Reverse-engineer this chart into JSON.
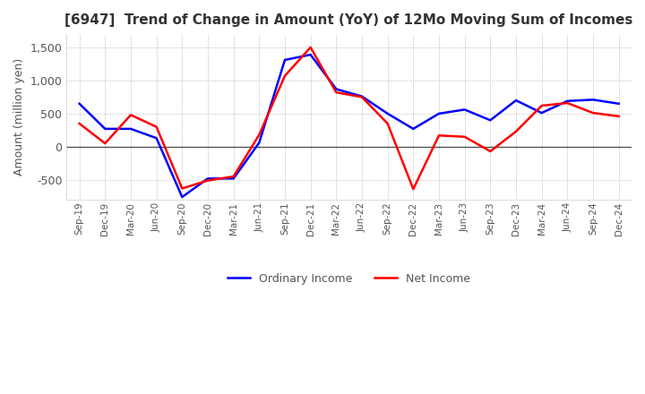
{
  "title": "[6947]  Trend of Change in Amount (YoY) of 12Mo Moving Sum of Incomes",
  "ylabel": "Amount (million yen)",
  "ylim": [
    -800,
    1700
  ],
  "yticks": [
    -500,
    0,
    500,
    1000,
    1500
  ],
  "x_labels": [
    "Sep-19",
    "Dec-19",
    "Mar-20",
    "Jun-20",
    "Sep-20",
    "Dec-20",
    "Mar-21",
    "Jun-21",
    "Sep-21",
    "Dec-21",
    "Mar-22",
    "Jun-22",
    "Sep-22",
    "Dec-22",
    "Mar-23",
    "Jun-23",
    "Sep-23",
    "Dec-23",
    "Mar-24",
    "Jun-24",
    "Sep-24",
    "Dec-24"
  ],
  "ordinary_income": [
    650,
    270,
    270,
    130,
    -760,
    -480,
    -480,
    60,
    1310,
    1390,
    870,
    760,
    500,
    270,
    500,
    560,
    400,
    700,
    510,
    690,
    710,
    650
  ],
  "net_income": [
    350,
    50,
    480,
    300,
    -630,
    -510,
    -450,
    180,
    1070,
    1500,
    820,
    750,
    350,
    -640,
    170,
    150,
    -70,
    230,
    620,
    660,
    510,
    460
  ],
  "ordinary_color": "#0000ff",
  "net_color": "#ff0000",
  "background_color": "#ffffff",
  "grid_color": "#aaaaaa",
  "zero_line_color": "#555555",
  "title_color": "#333333",
  "label_color": "#555555",
  "legend_label_ordinary": "Ordinary Income",
  "legend_label_net": "Net Income",
  "line_width": 1.8,
  "grid_style": ":"
}
